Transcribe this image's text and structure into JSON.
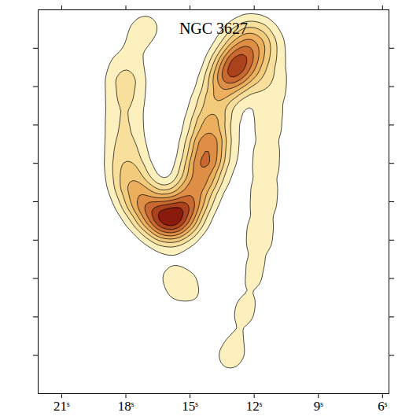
{
  "chart_data": {
    "type": "contour",
    "title": "NGC 3627",
    "x": [
      16.92,
      17.46,
      18.01,
      18.01,
      18.09,
      18.01,
      17.83,
      17.36,
      16.74,
      16.01,
      15.38,
      14.91,
      14.44,
      14.18,
      14.07,
      13.92,
      13.45,
      12.98,
      12.54,
      12.72,
      11.99,
      11.44,
      11.26,
      11.33,
      11.44,
      11.55,
      11.74,
      11.99,
      12.36,
      12.9,
      13.2,
      15.38,
      16.01,
      14.07
    ],
    "y": [
      96.5,
      92.9,
      84.6,
      78.7,
      70.9,
      63.0,
      56.1,
      50.8,
      46.9,
      44.3,
      46.3,
      51.2,
      57.1,
      63.0,
      68.9,
      74.8,
      80.7,
      84.3,
      86.6,
      91.5,
      93.5,
      89.6,
      80.7,
      70.9,
      61.0,
      51.2,
      41.3,
      31.5,
      21.7,
      12.8,
      7.9,
      28.0,
      32.5,
      23.6
    ],
    "values": [
      0.3,
      0.3,
      0.5,
      0.6,
      0.6,
      0.7,
      0.9,
      1.0,
      1.2,
      1.5,
      1.4,
      1.2,
      1.3,
      1.5,
      1.0,
      0.8,
      0.9,
      1.4,
      1.0,
      0.6,
      0.7,
      0.6,
      0.6,
      0.5,
      0.5,
      0.5,
      0.5,
      0.4,
      0.4,
      0.3,
      0.3,
      0.5,
      0.2,
      0.15
    ],
    "xlim": [
      22.1,
      5.7
    ],
    "ylim": [
      0,
      100
    ],
    "xticks": [
      {
        "value": 21,
        "label": "21ˢ"
      },
      {
        "value": 18,
        "label": "18ˢ"
      },
      {
        "value": 15,
        "label": "15ˢ"
      },
      {
        "value": 12,
        "label": "12ˢ"
      },
      {
        "value": 9,
        "label": "9ˢ"
      },
      {
        "value": 6,
        "label": "6ˢ"
      }
    ],
    "yticks": [
      10,
      20,
      30,
      40,
      50,
      60,
      70,
      80,
      90
    ],
    "tick_labels": "x"
  }
}
